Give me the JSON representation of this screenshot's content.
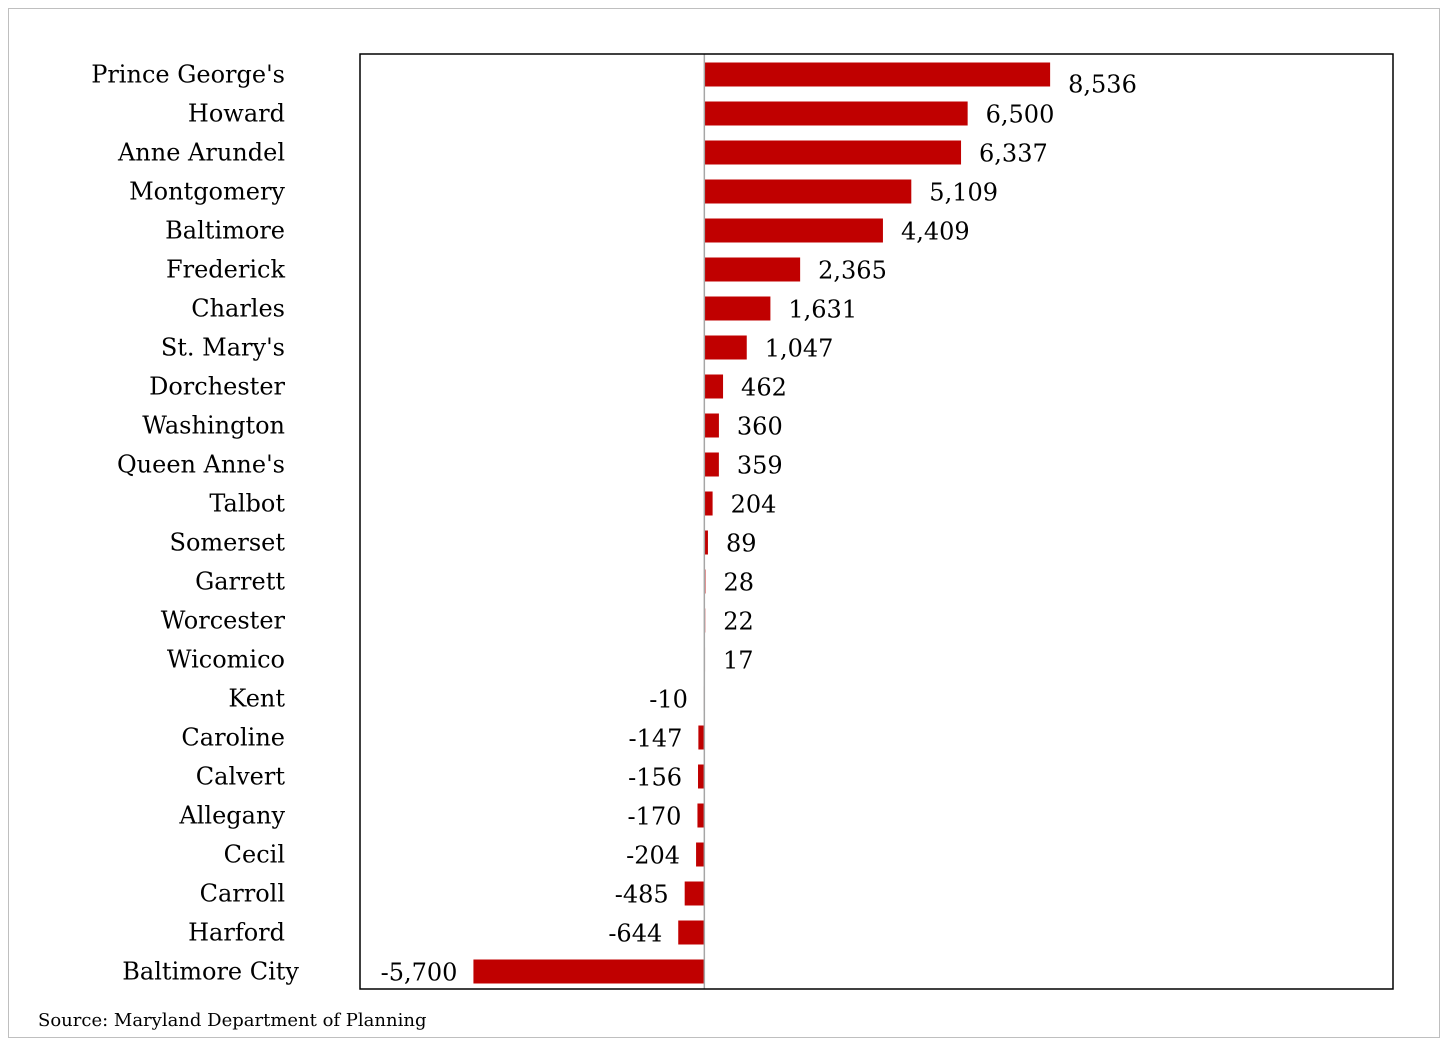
{
  "chart_data": {
    "type": "bar",
    "orientation": "horizontal",
    "title": "",
    "xlabel": "",
    "ylabel": "",
    "categories": [
      "Prince George's",
      "Howard",
      "Anne Arundel",
      "Montgomery",
      "Baltimore",
      "Frederick",
      "Charles",
      "St. Mary's",
      "Dorchester",
      "Washington",
      "Queen Anne's",
      "Talbot",
      "Somerset",
      "Garrett",
      "Worcester",
      "Wicomico",
      "Kent",
      "Caroline",
      "Calvert",
      "Allegany",
      "Cecil",
      "Carroll",
      "Harford",
      "Baltimore City"
    ],
    "values": [
      8536,
      6500,
      6337,
      5109,
      4409,
      2365,
      1631,
      1047,
      462,
      360,
      359,
      204,
      89,
      28,
      22,
      17,
      -10,
      -147,
      -156,
      -170,
      -204,
      -485,
      -644,
      -5700
    ],
    "value_labels": [
      "8,536",
      "6,500",
      "6,337",
      "5,109",
      "4,409",
      "2,365",
      "1,631",
      "1,047",
      "462",
      "360",
      "359",
      "204",
      "89",
      "28",
      "22",
      "17",
      "-10",
      "-147",
      "-156",
      "-170",
      "-204",
      "-485",
      "-644",
      "-5,700"
    ],
    "xlim": [
      -8500,
      17000
    ],
    "grid": false,
    "legend": "none",
    "bar_color": "#c00000",
    "axis_line_color": "#a6a6a6",
    "border_color": "#000000"
  },
  "source_text": "Source: Maryland Department of Planning"
}
